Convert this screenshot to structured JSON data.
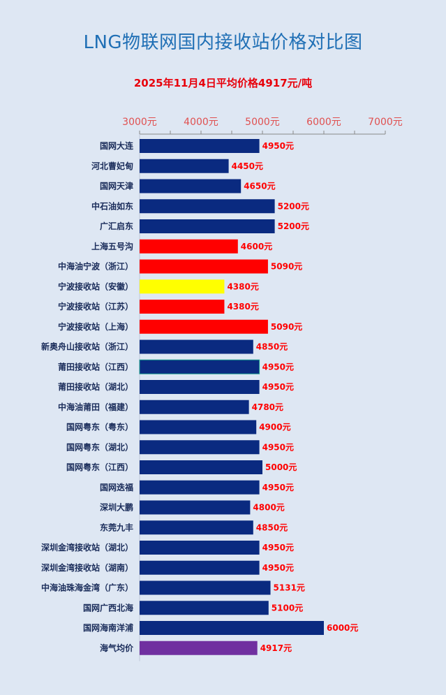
{
  "title": "LNG物联网国内接收站价格对比图",
  "subtitle": "2025年11月4日平均价格4917元/吨",
  "colors": {
    "title": "#1f6fb5",
    "subtitle": "#e8000b",
    "bar_default": "#0a2a80",
    "bar_red": "#ff0000",
    "bar_yellow": "#ffff00",
    "bar_purple": "#7030a0",
    "value_label": "#ff0000",
    "tick_label": "#e05050",
    "background": "#dee7f3"
  },
  "chart_data": {
    "type": "bar",
    "orientation": "horizontal",
    "xlim": [
      3000,
      7000
    ],
    "ticks": [
      3000,
      4000,
      5000,
      6000,
      7000
    ],
    "tick_labels": [
      "3000元",
      "4000元",
      "5000元",
      "6000元",
      "7000元"
    ],
    "categories": [
      "国网大连",
      "河北曹妃甸",
      "国网天津",
      "中石油如东",
      "广汇启东",
      "上海五号沟",
      "中海油宁波（浙江）",
      "宁波接收站（安徽）",
      "宁波接收站（江苏）",
      "宁波接收站（上海）",
      "新奥舟山接收站（浙江）",
      "莆田接收站（江西）",
      "莆田接收站（湖北）",
      "中海油莆田（福建）",
      "国网粤东（粤东）",
      "国网粤东（湖北）",
      "国网粤东（江西）",
      "国网迭福",
      "深圳大鹏",
      "东莞九丰",
      "深圳金湾接收站（湖北）",
      "深圳金湾接收站（湖南）",
      "中海油珠海金湾（广东）",
      "国网广西北海",
      "国网海南洋浦",
      "海气均价"
    ],
    "values": [
      4950,
      4450,
      4650,
      5200,
      5200,
      4600,
      5090,
      4380,
      4380,
      5090,
      4850,
      4950,
      4950,
      4780,
      4900,
      4950,
      5000,
      4950,
      4800,
      4850,
      4950,
      4950,
      5131,
      5100,
      6000,
      4917
    ],
    "value_labels": [
      "4950元",
      "4450元",
      "4650元",
      "5200元",
      "5200元",
      "4600元",
      "5090元",
      "4380元",
      "4380元",
      "5090元",
      "4850元",
      "4950元",
      "4950元",
      "4780元",
      "4900元",
      "4950元",
      "5000元",
      "4950元",
      "4800元",
      "4850元",
      "4950元",
      "4950元",
      "5131元",
      "5100元",
      "6000元",
      "4917元"
    ],
    "bar_colors": [
      "#0a2a80",
      "#0a2a80",
      "#0a2a80",
      "#0a2a80",
      "#0a2a80",
      "#ff0000",
      "#ff0000",
      "#ffff00",
      "#ff0000",
      "#ff0000",
      "#0a2a80",
      "#0a2a80",
      "#0a2a80",
      "#0a2a80",
      "#0a2a80",
      "#0a2a80",
      "#0a2a80",
      "#0a2a80",
      "#0a2a80",
      "#0a2a80",
      "#0a2a80",
      "#0a2a80",
      "#0a2a80",
      "#0a2a80",
      "#0a2a80",
      "#7030a0"
    ],
    "grid": false,
    "legend": "none"
  }
}
